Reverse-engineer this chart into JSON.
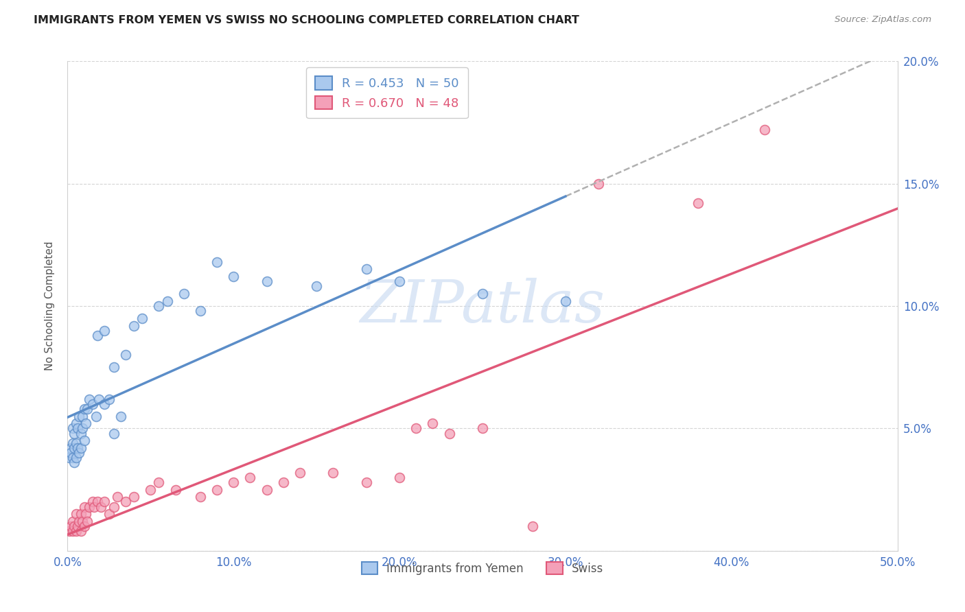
{
  "title": "IMMIGRANTS FROM YEMEN VS SWISS NO SCHOOLING COMPLETED CORRELATION CHART",
  "source": "Source: ZipAtlas.com",
  "ylabel": "No Schooling Completed",
  "xlim": [
    0.0,
    0.5
  ],
  "ylim": [
    0.0,
    0.2
  ],
  "xticks": [
    0.0,
    0.1,
    0.2,
    0.3,
    0.4,
    0.5
  ],
  "yticks": [
    0.0,
    0.05,
    0.1,
    0.15,
    0.2
  ],
  "xtick_labels": [
    "0.0%",
    "10.0%",
    "20.0%",
    "30.0%",
    "40.0%",
    "50.0%"
  ],
  "ytick_labels": [
    "",
    "5.0%",
    "10.0%",
    "15.0%",
    "20.0%"
  ],
  "background_color": "#ffffff",
  "grid_color": "#d0d0d0",
  "series1_label": "Immigrants from Yemen",
  "series1_color": "#aac9ee",
  "series1_R": "0.453",
  "series1_N": "50",
  "series1_line_color": "#5b8dc8",
  "series2_label": "Swiss",
  "series2_color": "#f4a0b8",
  "series2_R": "0.670",
  "series2_N": "48",
  "series2_line_color": "#e05878",
  "watermark_text": "ZIPatlas",
  "watermark_color": "#c5d8f0",
  "series1_x": [
    0.001,
    0.002,
    0.002,
    0.003,
    0.003,
    0.003,
    0.004,
    0.004,
    0.004,
    0.005,
    0.005,
    0.005,
    0.006,
    0.006,
    0.007,
    0.007,
    0.008,
    0.008,
    0.009,
    0.009,
    0.01,
    0.01,
    0.011,
    0.012,
    0.013,
    0.015,
    0.017,
    0.019,
    0.022,
    0.025,
    0.028,
    0.032,
    0.018,
    0.022,
    0.028,
    0.035,
    0.04,
    0.045,
    0.055,
    0.06,
    0.07,
    0.08,
    0.09,
    0.1,
    0.12,
    0.15,
    0.18,
    0.2,
    0.25,
    0.3
  ],
  "series1_y": [
    0.038,
    0.042,
    0.04,
    0.038,
    0.044,
    0.05,
    0.036,
    0.042,
    0.048,
    0.038,
    0.044,
    0.052,
    0.042,
    0.05,
    0.04,
    0.055,
    0.042,
    0.048,
    0.05,
    0.055,
    0.045,
    0.058,
    0.052,
    0.058,
    0.062,
    0.06,
    0.055,
    0.062,
    0.06,
    0.062,
    0.048,
    0.055,
    0.088,
    0.09,
    0.075,
    0.08,
    0.092,
    0.095,
    0.1,
    0.102,
    0.105,
    0.098,
    0.118,
    0.112,
    0.11,
    0.108,
    0.115,
    0.11,
    0.105,
    0.102
  ],
  "series2_x": [
    0.001,
    0.002,
    0.003,
    0.003,
    0.004,
    0.005,
    0.005,
    0.006,
    0.007,
    0.008,
    0.008,
    0.009,
    0.01,
    0.01,
    0.011,
    0.012,
    0.013,
    0.015,
    0.016,
    0.018,
    0.02,
    0.022,
    0.025,
    0.028,
    0.03,
    0.035,
    0.04,
    0.05,
    0.055,
    0.065,
    0.08,
    0.09,
    0.1,
    0.11,
    0.12,
    0.13,
    0.14,
    0.16,
    0.18,
    0.2,
    0.21,
    0.22,
    0.23,
    0.25,
    0.28,
    0.32,
    0.38,
    0.42
  ],
  "series2_y": [
    0.008,
    0.01,
    0.008,
    0.012,
    0.01,
    0.008,
    0.015,
    0.01,
    0.012,
    0.008,
    0.015,
    0.012,
    0.01,
    0.018,
    0.015,
    0.012,
    0.018,
    0.02,
    0.018,
    0.02,
    0.018,
    0.02,
    0.015,
    0.018,
    0.022,
    0.02,
    0.022,
    0.025,
    0.028,
    0.025,
    0.022,
    0.025,
    0.028,
    0.03,
    0.025,
    0.028,
    0.032,
    0.032,
    0.028,
    0.03,
    0.05,
    0.052,
    0.048,
    0.05,
    0.01,
    0.15,
    0.142,
    0.172
  ],
  "marker_size": 100,
  "marker_linewidth": 1.2,
  "marker_alpha": 0.75
}
